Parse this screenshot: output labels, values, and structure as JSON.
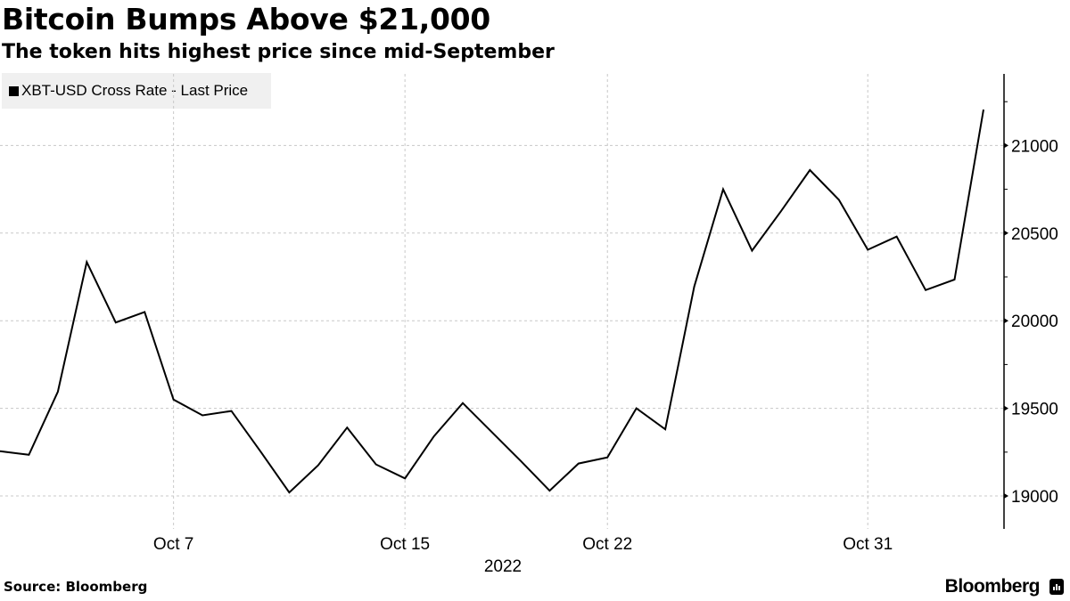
{
  "header": {
    "title": "Bitcoin Bumps Above $21,000",
    "subtitle": "The token hits highest price since mid-September"
  },
  "legend": {
    "label": "XBT-USD Cross Rate - Last Price",
    "swatch_color": "#000000"
  },
  "footer": {
    "source": "Source: Bloomberg",
    "brand": "Bloomberg"
  },
  "chart_data": {
    "type": "line",
    "title": "Bitcoin Bumps Above $21,000",
    "subtitle": "The token hits highest price since mid-September",
    "xlabel": "2022",
    "ylabel": "",
    "ylim": [
      18800,
      21400
    ],
    "y_axis_position": "right",
    "y_ticks": [
      19000,
      19500,
      20000,
      20500,
      21000
    ],
    "x_tick_labels": [
      "Oct 7",
      "Oct 15",
      "Oct 22",
      "Oct 31"
    ],
    "grid": true,
    "legend_position": "top-left",
    "series": [
      {
        "name": "XBT-USD Cross Rate - Last Price",
        "color": "#000000",
        "x": [
          "Oct 1",
          "Oct 2",
          "Oct 3",
          "Oct 4",
          "Oct 5",
          "Oct 6",
          "Oct 7",
          "Oct 8",
          "Oct 9",
          "Oct 10",
          "Oct 11",
          "Oct 12",
          "Oct 13",
          "Oct 14",
          "Oct 15",
          "Oct 16",
          "Oct 17",
          "Oct 18",
          "Oct 19",
          "Oct 20",
          "Oct 21",
          "Oct 22",
          "Oct 23",
          "Oct 24",
          "Oct 25",
          "Oct 26",
          "Oct 27",
          "Oct 28",
          "Oct 29",
          "Oct 30",
          "Oct 31",
          "Nov 1",
          "Nov 2",
          "Nov 3",
          "Nov 4"
        ],
        "values": [
          19255,
          19235,
          19595,
          20335,
          19990,
          20050,
          19550,
          19460,
          19485,
          19255,
          19020,
          19175,
          19390,
          19180,
          19100,
          19340,
          19530,
          19365,
          19200,
          19030,
          19185,
          19220,
          19500,
          19380,
          20195,
          20750,
          20400,
          20625,
          20860,
          20690,
          20405,
          20480,
          20175,
          20235,
          21205
        ]
      }
    ]
  }
}
